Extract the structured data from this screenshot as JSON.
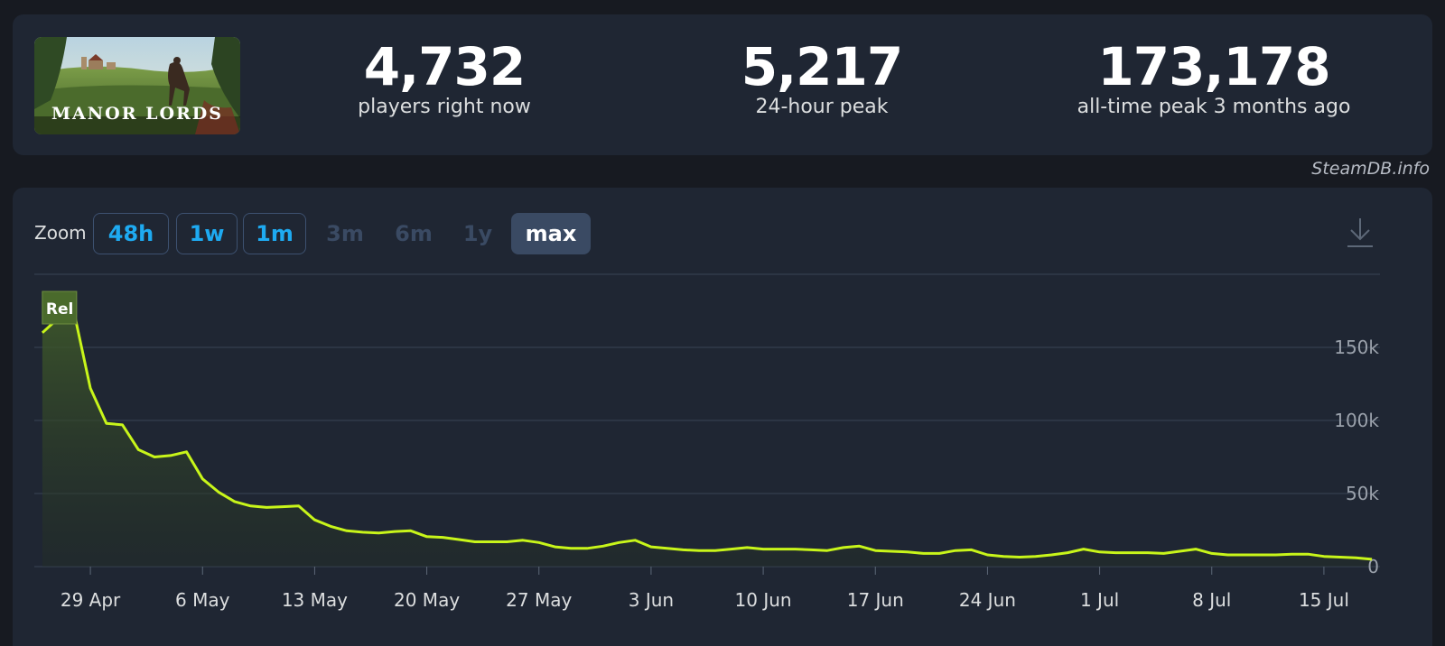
{
  "game": {
    "name": "MANOR LORDS"
  },
  "stats": [
    {
      "value": "4,732",
      "label": "players right now"
    },
    {
      "value": "5,217",
      "label": "24-hour peak"
    },
    {
      "value": "173,178",
      "label": "all-time peak 3 months ago"
    }
  ],
  "credit": "SteamDB.info",
  "zoom": {
    "label": "Zoom",
    "buttons": [
      {
        "label": "48h",
        "state": "enabled"
      },
      {
        "label": "1w",
        "state": "enabled"
      },
      {
        "label": "1m",
        "state": "enabled"
      },
      {
        "label": "3m",
        "state": "disabled"
      },
      {
        "label": "6m",
        "state": "disabled"
      },
      {
        "label": "1y",
        "state": "disabled"
      },
      {
        "label": "max",
        "state": "active"
      }
    ]
  },
  "download_icon": "download-icon",
  "colors": {
    "line": "#c8f51a",
    "accent": "#1eaaf1",
    "card": "#1f2633",
    "background": "#171a21"
  },
  "chart_data": {
    "type": "area",
    "title": "",
    "xlabel": "",
    "ylabel": "",
    "x_tick_labels": [
      "29 Apr",
      "6 May",
      "13 May",
      "20 May",
      "27 May",
      "3 Jun",
      "10 Jun",
      "17 Jun",
      "24 Jun",
      "1 Jul",
      "8 Jul",
      "15 Jul"
    ],
    "y_tick_labels": [
      "0",
      "50k",
      "100k",
      "150k"
    ],
    "ylim": [
      0,
      200000
    ],
    "grid": true,
    "annotation": {
      "label": "Rel",
      "date": "2024-04-26"
    },
    "series": [
      {
        "points": [
          [
            "2024-04-26",
            160000
          ],
          [
            "2024-04-27",
            170000
          ],
          [
            "2024-04-28",
            173000
          ],
          [
            "2024-04-29",
            122000
          ],
          [
            "2024-04-30",
            98000
          ],
          [
            "2024-05-01",
            97000
          ],
          [
            "2024-05-02",
            80000
          ],
          [
            "2024-05-03",
            75000
          ],
          [
            "2024-05-04",
            76000
          ],
          [
            "2024-05-05",
            78500
          ],
          [
            "2024-05-06",
            60000
          ],
          [
            "2024-05-07",
            51000
          ],
          [
            "2024-05-08",
            44500
          ],
          [
            "2024-05-09",
            41500
          ],
          [
            "2024-05-10",
            40500
          ],
          [
            "2024-05-11",
            41000
          ],
          [
            "2024-05-12",
            41500
          ],
          [
            "2024-05-13",
            32000
          ],
          [
            "2024-05-14",
            27500
          ],
          [
            "2024-05-15",
            24500
          ],
          [
            "2024-05-16",
            23500
          ],
          [
            "2024-05-17",
            23000
          ],
          [
            "2024-05-18",
            24000
          ],
          [
            "2024-05-19",
            24500
          ],
          [
            "2024-05-20",
            20500
          ],
          [
            "2024-05-21",
            20000
          ],
          [
            "2024-05-22",
            18500
          ],
          [
            "2024-05-23",
            17000
          ],
          [
            "2024-05-24",
            17000
          ],
          [
            "2024-05-25",
            17000
          ],
          [
            "2024-05-26",
            18000
          ],
          [
            "2024-05-27",
            16500
          ],
          [
            "2024-05-28",
            13500
          ],
          [
            "2024-05-29",
            12500
          ],
          [
            "2024-05-30",
            12500
          ],
          [
            "2024-05-31",
            14000
          ],
          [
            "2024-06-01",
            16500
          ],
          [
            "2024-06-02",
            18000
          ],
          [
            "2024-06-03",
            13500
          ],
          [
            "2024-06-04",
            12500
          ],
          [
            "2024-06-05",
            11500
          ],
          [
            "2024-06-06",
            11000
          ],
          [
            "2024-06-07",
            11000
          ],
          [
            "2024-06-08",
            12000
          ],
          [
            "2024-06-09",
            13000
          ],
          [
            "2024-06-10",
            12000
          ],
          [
            "2024-06-11",
            12000
          ],
          [
            "2024-06-12",
            12000
          ],
          [
            "2024-06-13",
            11500
          ],
          [
            "2024-06-14",
            11000
          ],
          [
            "2024-06-15",
            13000
          ],
          [
            "2024-06-16",
            14000
          ],
          [
            "2024-06-17",
            11000
          ],
          [
            "2024-06-18",
            10500
          ],
          [
            "2024-06-19",
            10000
          ],
          [
            "2024-06-20",
            9000
          ],
          [
            "2024-06-21",
            9000
          ],
          [
            "2024-06-22",
            11000
          ],
          [
            "2024-06-23",
            11500
          ],
          [
            "2024-06-24",
            8000
          ],
          [
            "2024-06-25",
            7000
          ],
          [
            "2024-06-26",
            6500
          ],
          [
            "2024-06-27",
            7000
          ],
          [
            "2024-06-28",
            8000
          ],
          [
            "2024-06-29",
            9500
          ],
          [
            "2024-06-30",
            12000
          ],
          [
            "2024-07-01",
            10000
          ],
          [
            "2024-07-02",
            9500
          ],
          [
            "2024-07-03",
            9500
          ],
          [
            "2024-07-04",
            9500
          ],
          [
            "2024-07-05",
            9000
          ],
          [
            "2024-07-06",
            10500
          ],
          [
            "2024-07-07",
            12000
          ],
          [
            "2024-07-08",
            9000
          ],
          [
            "2024-07-09",
            8000
          ],
          [
            "2024-07-10",
            8000
          ],
          [
            "2024-07-11",
            8000
          ],
          [
            "2024-07-12",
            8000
          ],
          [
            "2024-07-13",
            8500
          ],
          [
            "2024-07-14",
            8500
          ],
          [
            "2024-07-15",
            7000
          ],
          [
            "2024-07-16",
            6500
          ],
          [
            "2024-07-17",
            6000
          ],
          [
            "2024-07-18",
            5000
          ]
        ]
      }
    ]
  }
}
